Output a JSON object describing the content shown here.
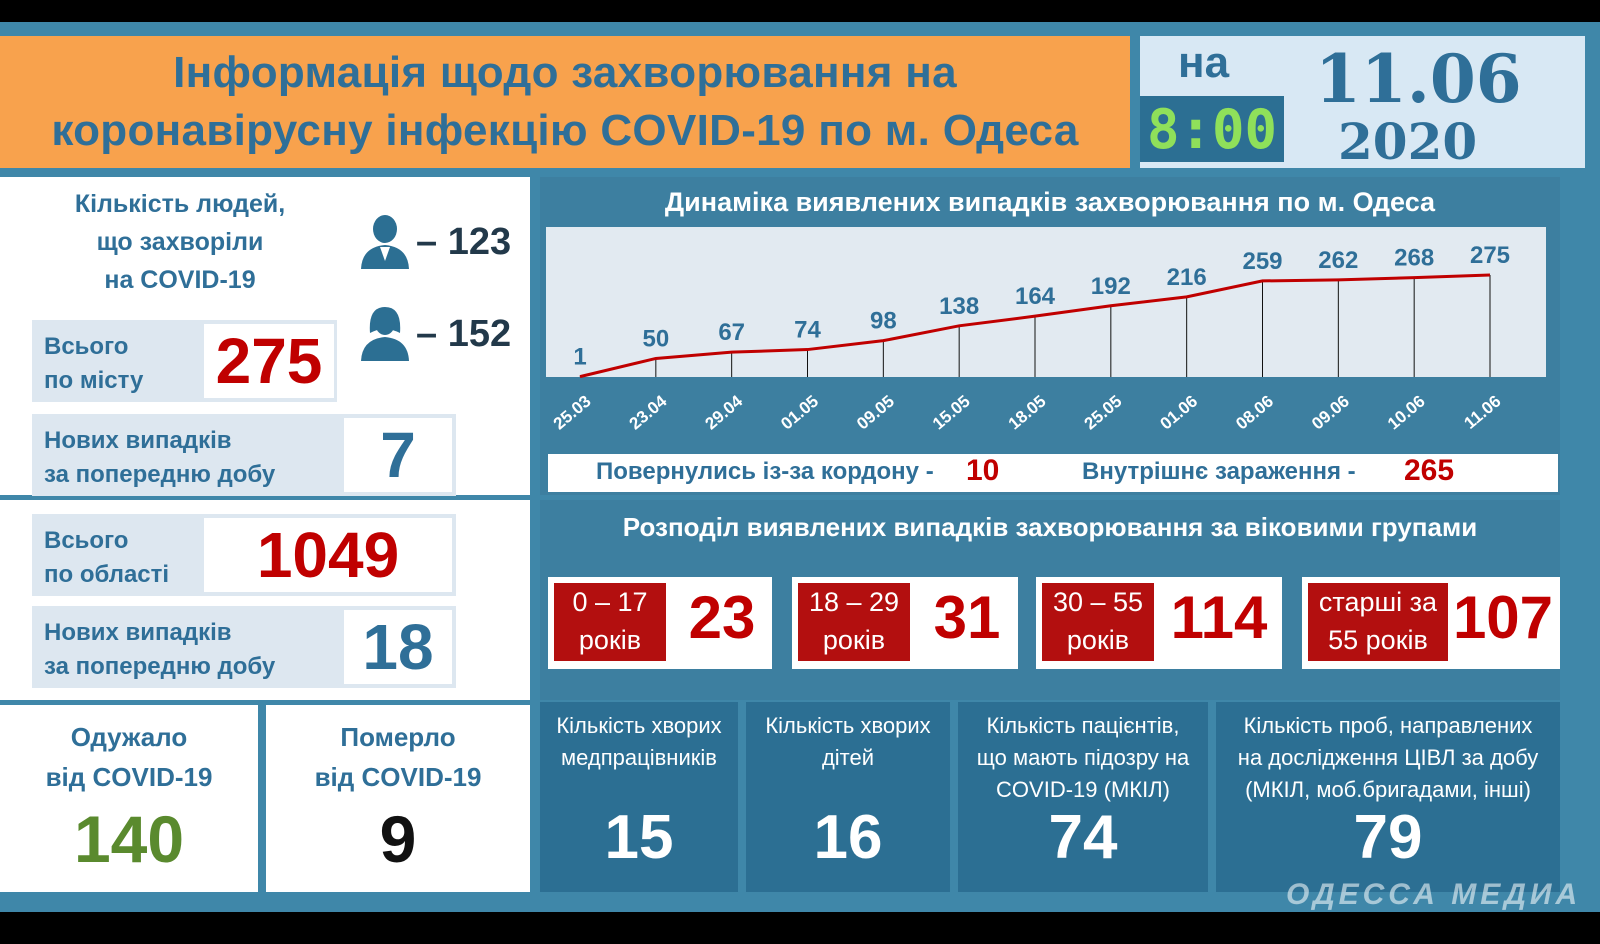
{
  "header": {
    "title_line1": "Інформація щодо захворювання на",
    "title_line2": "коронавірусну інфекцію COVID-19 по м. Одеса",
    "na": "на",
    "time": "8:00",
    "date_day": "11.06",
    "date_year": "2020",
    "accent_color": "#f8a24d",
    "time_color": "#8fe05a"
  },
  "city": {
    "sick_label_1": "Кількість людей,",
    "sick_label_2": "що захворіли",
    "sick_label_3": "на COVID-19",
    "men_icon": "male-user-icon",
    "men_count": "– 123",
    "women_icon": "female-user-icon",
    "women_count": "– 152",
    "total_label_1": "Всього",
    "total_label_2": "по місту",
    "total_value": "275",
    "new_label_1": "Нових випадків",
    "new_label_2": "за попередню добу",
    "new_value": "7"
  },
  "region": {
    "total_label_1": "Всього",
    "total_label_2": "по області",
    "total_value": "1049",
    "new_label_1": "Нових випадків",
    "new_label_2": "за попередню добу",
    "new_value": "18"
  },
  "outcomes": {
    "recovered_label_1": "Одужало",
    "recovered_label_2": "від COVID-19",
    "recovered_value": "140",
    "died_label_1": "Померло",
    "died_label_2": "від COVID-19",
    "died_value": "9"
  },
  "chart_data": {
    "type": "line",
    "title": "Динаміка виявлених випадків захворювання по м. Одеса",
    "categories": [
      "25.03",
      "23.04",
      "29.04",
      "01.05",
      "09.05",
      "15.05",
      "18.05",
      "25.05",
      "01.06",
      "08.06",
      "09.06",
      "10.06",
      "11.06"
    ],
    "values": [
      1,
      50,
      67,
      74,
      98,
      138,
      164,
      192,
      216,
      259,
      262,
      268,
      275
    ],
    "ylim": [
      0,
      300
    ],
    "line_color": "#c00000",
    "grid": false,
    "legend": "none"
  },
  "ratio": {
    "returned_label": "Повернулись із-за кордону -",
    "returned_value": "10",
    "internal_label": "Внутрішнє зараження -",
    "internal_value": "265"
  },
  "age": {
    "title": "Розподіл виявлених випадків захворювання за віковими групами",
    "groups": [
      {
        "line1": "0 – 17",
        "line2": "років",
        "value": "23"
      },
      {
        "line1": "18 – 29",
        "line2": "років",
        "value": "31"
      },
      {
        "line1": "30 – 55",
        "line2": "років",
        "value": "114"
      },
      {
        "line1": "старші за",
        "line2": "55 років",
        "value": "107"
      }
    ]
  },
  "stats": [
    {
      "line1": "Кількість хворих",
      "line2": "медпрацівників",
      "line3": "",
      "value": "15"
    },
    {
      "line1": "Кількість хворих",
      "line2": "дітей",
      "line3": "",
      "value": "16"
    },
    {
      "line1": "Кількість пацієнтів,",
      "line2": "що мають підозру на",
      "line3": "COVID-19 (МКІЛ)",
      "value": "74"
    },
    {
      "line1": "Кількість проб, направлених",
      "line2": "на дослідження ЦІВЛ за добу",
      "line3": "(МКІЛ, моб.бригадами, інші)",
      "value": "79"
    }
  ],
  "watermark": "ОДЕССА МЕДИА"
}
